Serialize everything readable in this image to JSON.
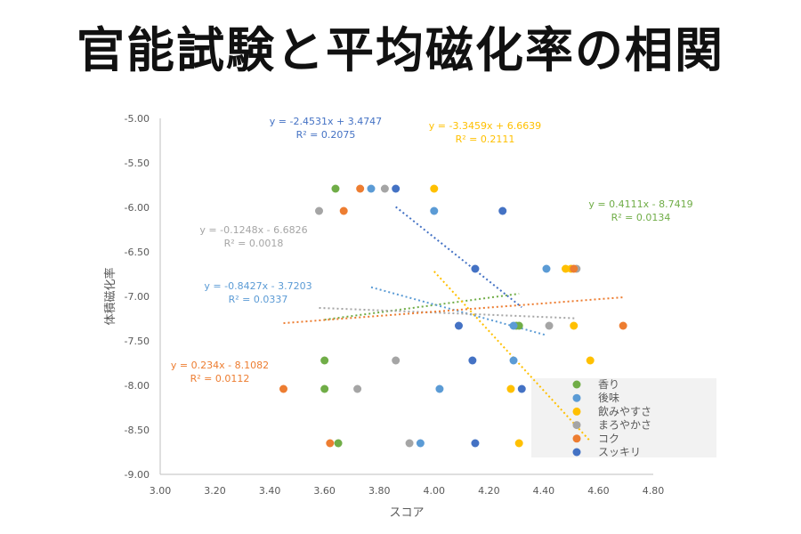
{
  "title": "官能試験と平均磁化率の相関",
  "chart_data": {
    "type": "scatter",
    "xlabel": "スコア",
    "ylabel": "体積磁化率",
    "xlim": [
      3.0,
      4.8
    ],
    "ylim": [
      -9.0,
      -5.0
    ],
    "x_ticks": [
      "3.00",
      "3.20",
      "3.40",
      "3.60",
      "3.80",
      "4.00",
      "4.20",
      "4.40",
      "4.60",
      "4.80"
    ],
    "y_ticks": [
      "-5.00",
      "-5.50",
      "-6.00",
      "-6.50",
      "-7.00",
      "-7.50",
      "-8.00",
      "-8.50",
      "-9.00"
    ],
    "grid": false,
    "legend_position": "bottom-right",
    "series": [
      {
        "name": "香り",
        "color": "#70AD47",
        "points": [
          [
            3.64,
            -5.79
          ],
          [
            3.6,
            -7.72
          ],
          [
            3.6,
            -8.04
          ],
          [
            3.65,
            -8.65
          ],
          [
            4.3,
            -7.33
          ],
          [
            4.31,
            -7.33
          ]
        ],
        "trendline": {
          "x": [
            3.6,
            4.31
          ],
          "label": "y = 0.4111x - 8.7419",
          "r2": "R² = 0.0134"
        }
      },
      {
        "name": "後味",
        "color": "#5B9BD5",
        "points": [
          [
            3.77,
            -5.79
          ],
          [
            4.0,
            -6.04
          ],
          [
            4.02,
            -8.04
          ],
          [
            3.95,
            -8.65
          ],
          [
            4.29,
            -7.72
          ],
          [
            4.29,
            -7.33
          ],
          [
            4.41,
            -6.69
          ]
        ],
        "trendline": {
          "x": [
            3.77,
            4.41
          ],
          "label": "y = -0.8427x - 3.7203",
          "r2": "R² = 0.0337"
        }
      },
      {
        "name": "飲みやすさ",
        "color": "#FFC000",
        "points": [
          [
            4.0,
            -5.79
          ],
          [
            4.28,
            -8.04
          ],
          [
            4.31,
            -8.65
          ],
          [
            4.48,
            -6.69
          ],
          [
            4.5,
            -6.69
          ],
          [
            4.51,
            -7.33
          ],
          [
            4.57,
            -7.72
          ]
        ],
        "trendline": {
          "x": [
            4.0,
            4.57
          ],
          "label": "y = -3.3459x + 6.6639",
          "r2": "R² = 0.2111"
        }
      },
      {
        "name": "まろやかさ",
        "color": "#A5A5A5",
        "points": [
          [
            3.58,
            -6.04
          ],
          [
            3.82,
            -5.79
          ],
          [
            3.72,
            -8.04
          ],
          [
            3.86,
            -7.72
          ],
          [
            3.91,
            -8.65
          ],
          [
            4.42,
            -7.33
          ],
          [
            4.52,
            -6.69
          ]
        ],
        "trendline": {
          "x": [
            3.58,
            4.52
          ],
          "label": "y = -0.1248x - 6.6826",
          "r2": "R² = 0.0018"
        }
      },
      {
        "name": "コク",
        "color": "#ED7D31",
        "points": [
          [
            3.45,
            -8.04
          ],
          [
            3.62,
            -8.65
          ],
          [
            3.67,
            -6.04
          ],
          [
            3.73,
            -5.79
          ],
          [
            4.51,
            -6.69
          ],
          [
            4.69,
            -7.33
          ]
        ],
        "trendline": {
          "x": [
            3.45,
            4.69
          ],
          "label": "y = 0.234x - 8.1082",
          "r2": "R² = 0.0112"
        }
      },
      {
        "name": "スッキリ",
        "color": "#4472C4",
        "points": [
          [
            3.86,
            -5.79
          ],
          [
            4.09,
            -7.33
          ],
          [
            4.14,
            -7.72
          ],
          [
            4.15,
            -6.69
          ],
          [
            4.15,
            -8.65
          ],
          [
            4.25,
            -6.04
          ],
          [
            4.32,
            -8.04
          ]
        ],
        "trendline": {
          "x": [
            3.86,
            4.32
          ],
          "label": "y = -2.4531x + 3.4747",
          "r2": "R² = 0.2075"
        }
      }
    ]
  }
}
